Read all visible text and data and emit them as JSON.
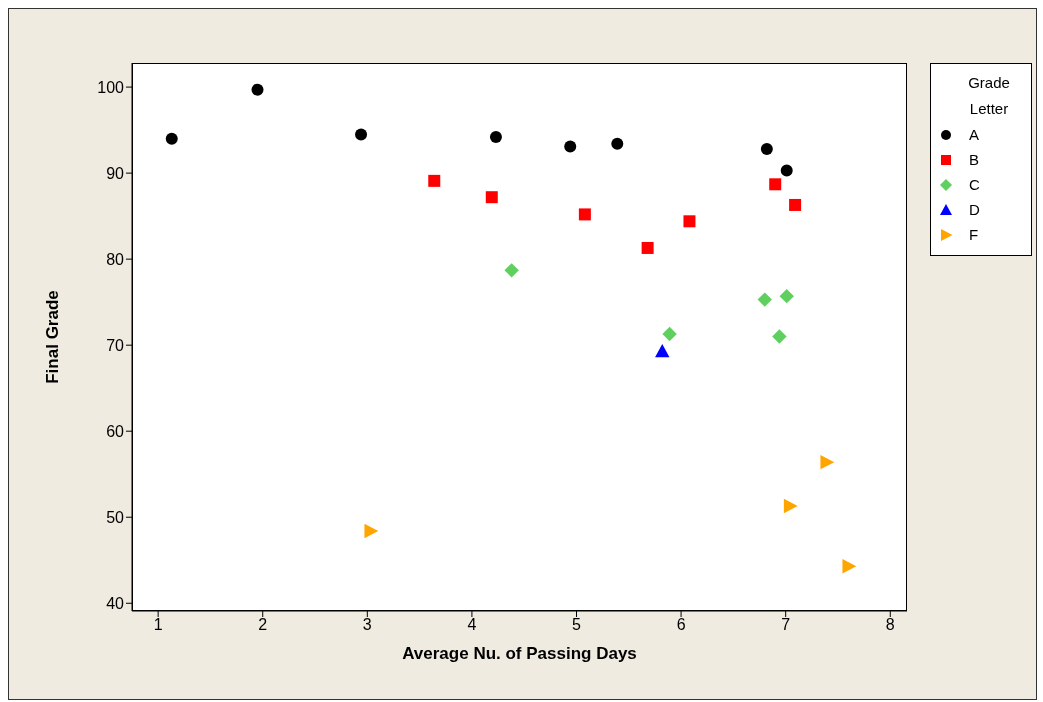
{
  "chart_data": {
    "type": "scatter",
    "xlabel": "Average Nu. of Passing Days",
    "ylabel": "Final Grade",
    "legend_title": "Grade Letter",
    "legend": "top right",
    "xlim": [
      0.75,
      8.16
    ],
    "xticks": [
      1,
      2,
      3,
      4,
      5,
      6,
      7,
      8
    ],
    "ylim": [
      39.1,
      102.8
    ],
    "yticks": [
      40,
      50,
      60,
      70,
      80,
      90,
      100
    ],
    "series": [
      {
        "name": "A",
        "color": "#000000",
        "marker": "circle",
        "x": [
          1.13,
          1.95,
          2.94,
          4.23,
          4.94,
          5.39,
          6.82,
          7.01
        ],
        "values": [
          94.0,
          99.7,
          94.5,
          94.2,
          93.1,
          93.4,
          92.8,
          90.3
        ]
      },
      {
        "name": "B",
        "color": "#ff0000",
        "marker": "square",
        "x": [
          3.64,
          4.19,
          5.08,
          5.68,
          6.08,
          6.9,
          7.09
        ],
        "values": [
          89.1,
          87.2,
          85.2,
          81.3,
          84.4,
          88.7,
          86.3
        ]
      },
      {
        "name": "C",
        "color": "#5fcf5f",
        "marker": "diamond",
        "x": [
          4.38,
          5.89,
          6.8,
          7.01,
          6.94
        ],
        "values": [
          78.7,
          71.3,
          75.3,
          75.7,
          71.0
        ]
      },
      {
        "name": "D",
        "color": "#0000ff",
        "marker": "triangle",
        "x": [
          5.82
        ],
        "values": [
          69.3
        ]
      },
      {
        "name": "F",
        "color": "#ffa500",
        "marker": "triangle-right",
        "x": [
          3.03,
          7.39,
          7.04,
          7.6
        ],
        "values": [
          48.4,
          56.4,
          51.3,
          44.3
        ]
      }
    ]
  }
}
